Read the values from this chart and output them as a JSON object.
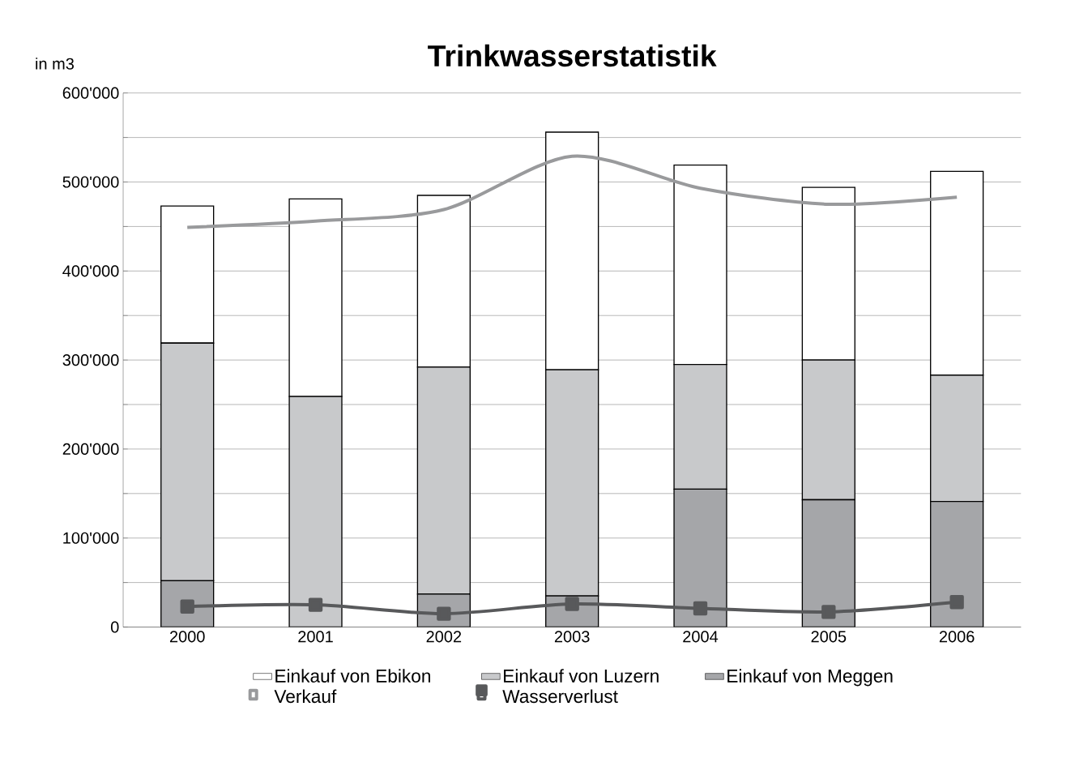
{
  "chart_data": {
    "type": "bar",
    "title": "Trinkwasserstatistik",
    "ylabel": "in m3",
    "stacked": true,
    "categories": [
      "2000",
      "2001",
      "2002",
      "2003",
      "2004",
      "2005",
      "2006"
    ],
    "series": [
      {
        "name": "Einkauf von Meggen",
        "color": "#a5a6a9",
        "values": [
          52000,
          0,
          37000,
          35000,
          155000,
          143000,
          141000
        ]
      },
      {
        "name": "Einkauf von Luzern",
        "color": "#c8c9cb",
        "values": [
          267000,
          259000,
          255000,
          254000,
          140000,
          157000,
          142000
        ]
      },
      {
        "name": "Einkauf von Ebikon",
        "color": "#ffffff",
        "values": [
          154000,
          222000,
          193000,
          267000,
          224000,
          194000,
          229000
        ]
      },
      {
        "name": "Verkauf",
        "type": "line",
        "color": "#999a9c",
        "marker": "none",
        "line_style": "solid",
        "values": [
          449000,
          456000,
          469000,
          529000,
          493000,
          475000,
          483000
        ]
      },
      {
        "name": "Wasserverlust",
        "type": "line",
        "color": "#58595b",
        "marker": "square",
        "line_style": "solid",
        "values": [
          23000,
          25000,
          15000,
          26000,
          21000,
          17000,
          28000
        ]
      }
    ],
    "ylim": [
      0,
      600000
    ],
    "yticks": [
      {
        "value": 0,
        "label": "0"
      },
      {
        "value": 50000,
        "label": null
      },
      {
        "value": 100000,
        "label": "100'000"
      },
      {
        "value": 150000,
        "label": null
      },
      {
        "value": 200000,
        "label": "200'000"
      },
      {
        "value": 250000,
        "label": null
      },
      {
        "value": 300000,
        "label": "300'000"
      },
      {
        "value": 350000,
        "label": null
      },
      {
        "value": 400000,
        "label": "400'000"
      },
      {
        "value": 450000,
        "label": null
      },
      {
        "value": 500000,
        "label": "500'000"
      },
      {
        "value": 550000,
        "label": null
      },
      {
        "value": 600000,
        "label": "600'000"
      }
    ],
    "grid": "y",
    "legend": "bottom"
  }
}
